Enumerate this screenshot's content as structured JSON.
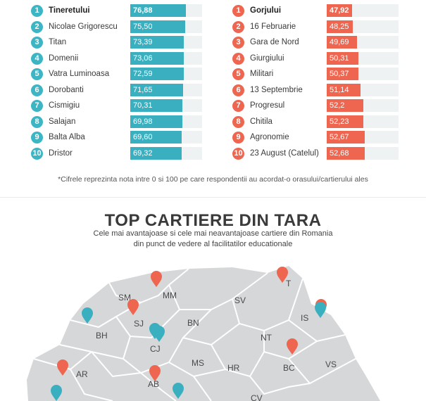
{
  "left_ranking": [
    {
      "rank": "1",
      "name": "Tineretului",
      "value": "76,88"
    },
    {
      "rank": "2",
      "name": "Nicolae Grigorescu",
      "value": "75,50"
    },
    {
      "rank": "3",
      "name": "Titan",
      "value": "73,39"
    },
    {
      "rank": "4",
      "name": "Domenii",
      "value": "73,06"
    },
    {
      "rank": "5",
      "name": "Vatra Luminoasa",
      "value": "72,59"
    },
    {
      "rank": "6",
      "name": "Dorobanti",
      "value": "71,65"
    },
    {
      "rank": "7",
      "name": "Cismigiu",
      "value": "70,31"
    },
    {
      "rank": "8",
      "name": "Salajan",
      "value": "69,98"
    },
    {
      "rank": "9",
      "name": "Balta Alba",
      "value": "69,60"
    },
    {
      "rank": "10",
      "name": "Dristor",
      "value": "69,32"
    }
  ],
  "right_ranking": [
    {
      "rank": "1",
      "name": "Gorjului",
      "value": "47,92"
    },
    {
      "rank": "2",
      "name": "16 Februarie",
      "value": "48,25"
    },
    {
      "rank": "3",
      "name": "Gara de Nord",
      "value": "49,69"
    },
    {
      "rank": "4",
      "name": "Giurgiului",
      "value": "50,31"
    },
    {
      "rank": "5",
      "name": "Militari",
      "value": "50,37"
    },
    {
      "rank": "6",
      "name": "13 Septembrie",
      "value": "51,14"
    },
    {
      "rank": "7",
      "name": "Progresul",
      "value": "52,2"
    },
    {
      "rank": "8",
      "name": "Chitila",
      "value": "52,23"
    },
    {
      "rank": "9",
      "name": "Agronomie",
      "value": "52,67"
    },
    {
      "rank": "10",
      "name": "23 August (Catelul)",
      "value": "52,68"
    }
  ],
  "footnote": "*Cifrele reprezinta nota intre 0 si 100 pe care respondentii au acordat-o orasului/cartierului ales",
  "section": {
    "title": "TOP CARTIERE DIN TARA",
    "subtitle_line1": "Cele mai avantajoase si cele mai neavantajoase cartiere din Romania",
    "subtitle_line2": "din punct de vedere al facilitatilor educationale"
  },
  "map": {
    "counties": [
      "SM",
      "MM",
      "SV",
      "BH",
      "SJ",
      "BN",
      "IS",
      "CJ",
      "NT",
      "AR",
      "MS",
      "HR",
      "BC",
      "VS",
      "AB",
      "CV",
      "T"
    ],
    "colors": {
      "county_fill": "#d5d7d8",
      "county_border": "#ffffff",
      "pin_red": "#ee6650",
      "pin_blue": "#3aafc0"
    }
  }
}
